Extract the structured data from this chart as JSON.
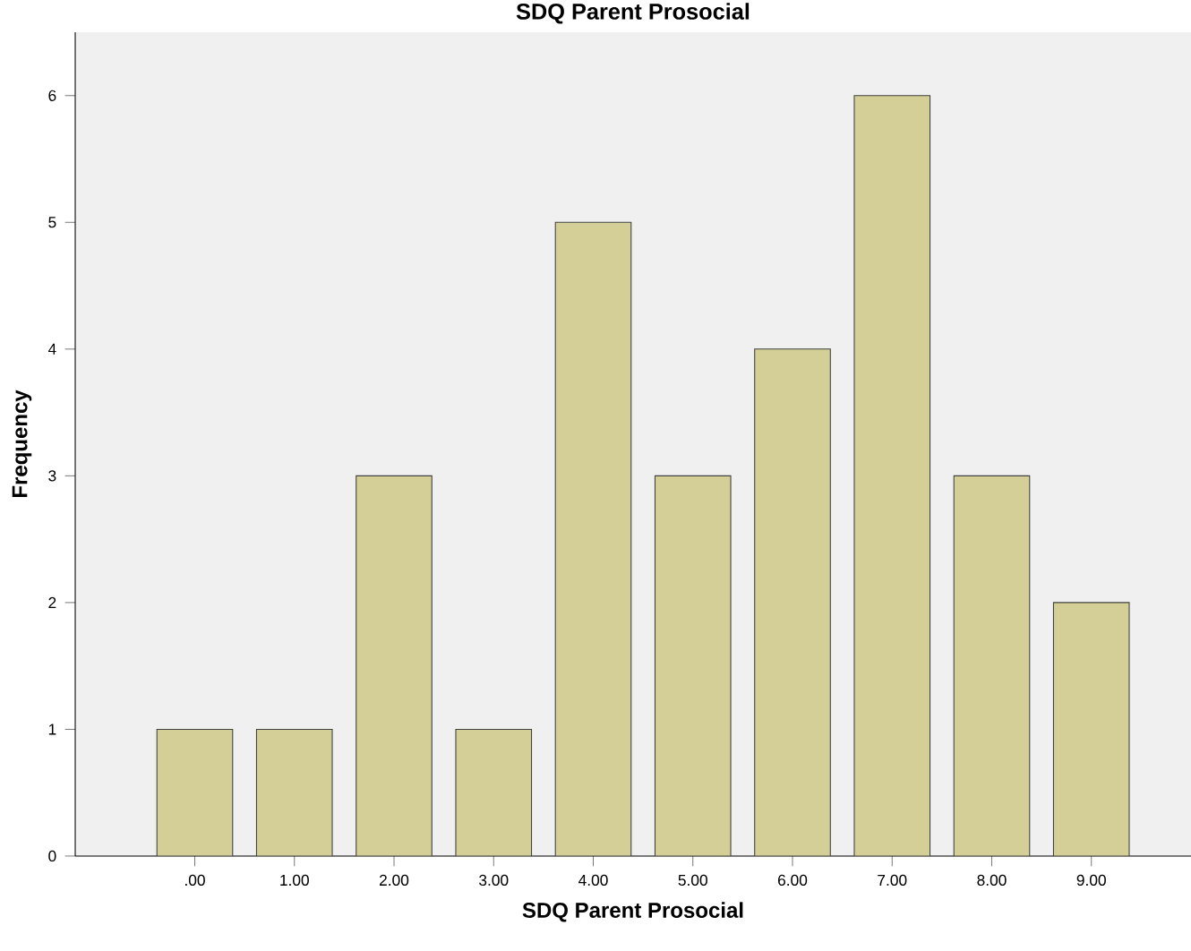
{
  "chart_data": {
    "type": "bar",
    "title": "SDQ Parent Prosocial",
    "xlabel": "SDQ Parent Prosocial",
    "ylabel": "Frequency",
    "categories": [
      ".00",
      "1.00",
      "2.00",
      "3.00",
      "4.00",
      "5.00",
      "6.00",
      "7.00",
      "8.00",
      "9.00"
    ],
    "values": [
      1,
      1,
      3,
      1,
      5,
      3,
      4,
      6,
      3,
      2
    ],
    "color": "#d4cf96",
    "ylim": [
      0,
      6.5
    ],
    "yticks": [
      0,
      1,
      2,
      3,
      4,
      5,
      6
    ],
    "grid": false
  }
}
